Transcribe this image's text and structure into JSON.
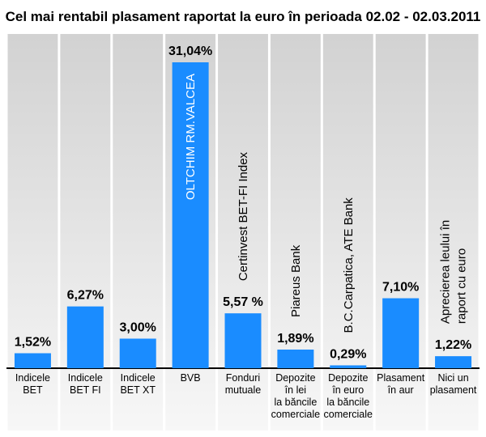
{
  "chart_data": {
    "type": "bar",
    "title": "Cel mai rentabil plasament raportat la euro în perioada 02.02 - 02.03.2011",
    "categories": [
      [
        "Indicele",
        "BET"
      ],
      [
        "Indicele",
        "BET FI"
      ],
      [
        "Indicele",
        "BET XT"
      ],
      [
        "BVB"
      ],
      [
        "Fonduri",
        "mutuale"
      ],
      [
        "Depozite",
        "în lei",
        "la băncile",
        "comerciale"
      ],
      [
        "Depozite",
        "în euro",
        "la băncile",
        "comerciale"
      ],
      [
        "Plasament",
        "în aur"
      ],
      [
        "Nici un",
        "plasament"
      ]
    ],
    "values": [
      1.52,
      6.27,
      3.0,
      31.04,
      5.57,
      1.89,
      0.29,
      7.1,
      1.22
    ],
    "value_labels": [
      "1,52%",
      "6,27%",
      "3,00%",
      "31,04%",
      "5,57 %",
      "1,89%",
      "0,29%",
      "7,10%",
      "1,22%"
    ],
    "annotations": [
      [
        "",
        ""
      ],
      [
        "",
        ""
      ],
      [
        "",
        ""
      ],
      [
        "OLTCHIM RM.VALCEA",
        ""
      ],
      [
        "Certinvest BET-FI Index",
        ""
      ],
      [
        "Piareus Bank",
        ""
      ],
      [
        "B.C.Carpatica, ATE Bank",
        ""
      ],
      [
        "",
        ""
      ],
      [
        "Aprecierea leului în",
        "raport cu euro"
      ]
    ],
    "ylim": [
      0,
      31.04
    ],
    "xlabel": "",
    "ylabel": "",
    "grid": false,
    "legend": "none",
    "bar_color": "#1a8cff",
    "background_top": "#d2d2d2",
    "background_bottom": "#f7f7f7"
  }
}
